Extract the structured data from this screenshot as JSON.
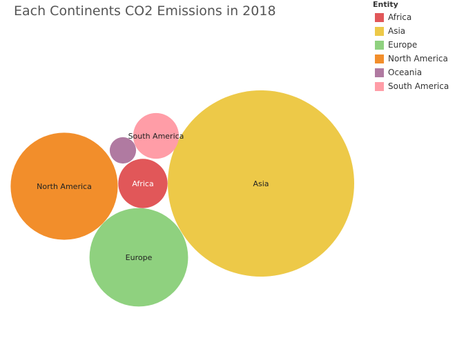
{
  "chart_data": {
    "type": "bubble",
    "title": "Each Continents CO2 Emissions in 2018",
    "legend_title": "Entity",
    "legend_position": "top-right",
    "series": [
      {
        "name": "Africa",
        "color": "#e15759",
        "label_color": "#ffffff",
        "relative_value": 0.07
      },
      {
        "name": "Asia",
        "color": "#edc948",
        "label_color": "#222222",
        "relative_value": 1.0
      },
      {
        "name": "Europe",
        "color": "#8fd17f",
        "label_color": "#222222",
        "relative_value": 0.28
      },
      {
        "name": "North America",
        "color": "#f28e2b",
        "label_color": "#222222",
        "relative_value": 0.33
      },
      {
        "name": "Oceania",
        "color": "#b07aa1",
        "label_color": "#ffffff",
        "relative_value": 0.02
      },
      {
        "name": "South America",
        "color": "#ff9da7",
        "label_color": "#222222",
        "relative_value": 0.06
      }
    ]
  }
}
